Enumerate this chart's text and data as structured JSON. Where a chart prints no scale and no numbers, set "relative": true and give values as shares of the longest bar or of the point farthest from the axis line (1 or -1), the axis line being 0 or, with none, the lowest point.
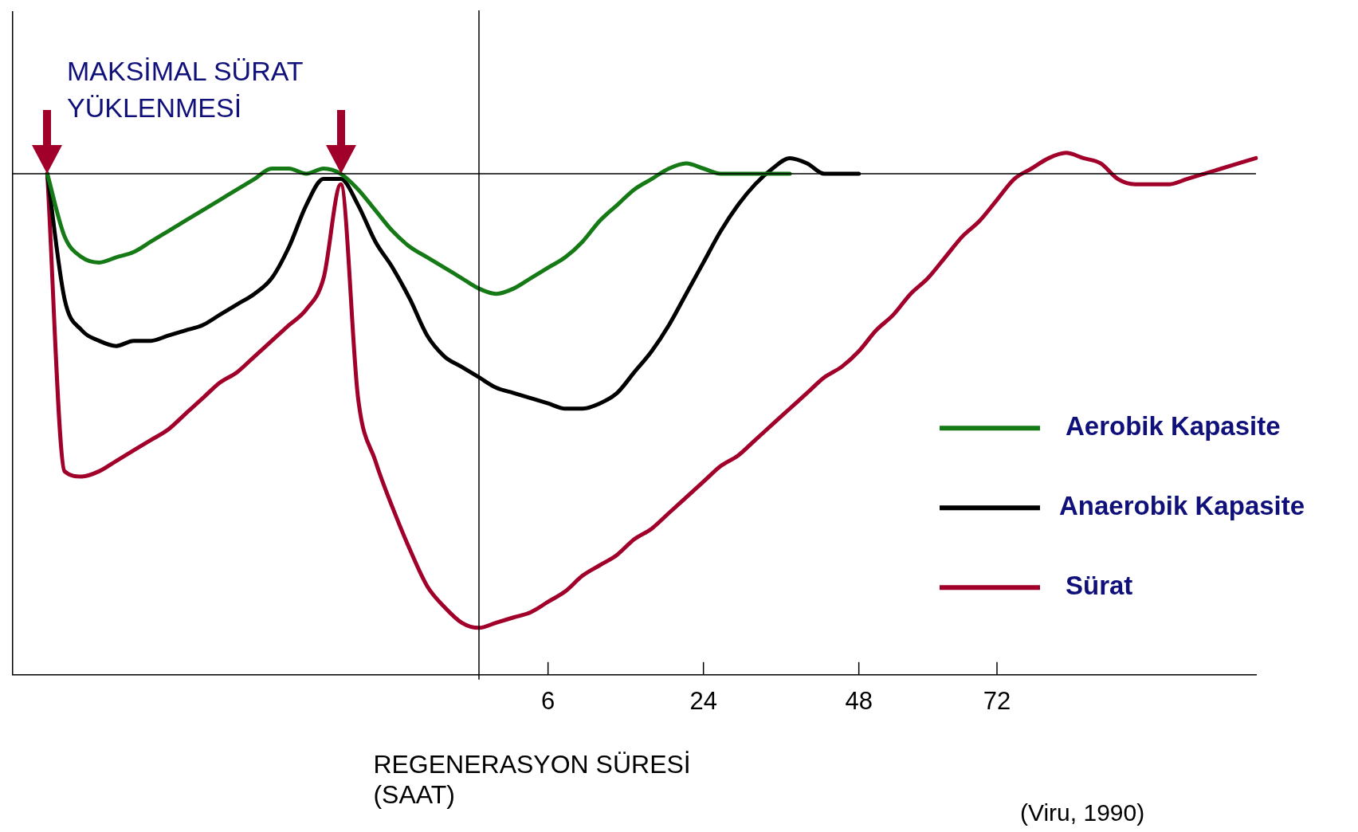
{
  "chart_data": {
    "type": "line",
    "relative": true,
    "xlabel": "REGENERASYON SÜRESİ\n(SAAT)",
    "annotations": [
      "MAKSİMAL SÜRAT\nYÜKLENMESİ",
      "(Viru, 1990)"
    ],
    "categories": [
      null,
      null,
      null,
      null,
      null,
      null,
      null,
      null,
      null,
      null,
      null,
      null,
      null,
      null,
      null,
      null,
      null,
      null,
      null,
      null,
      null,
      null,
      null,
      null,
      null,
      null,
      null,
      null,
      null,
      null,
      null,
      "6",
      null,
      null,
      null,
      null,
      null,
      null,
      null,
      null,
      "24",
      null,
      null,
      null,
      null,
      null,
      null,
      null,
      null,
      "48",
      null,
      null,
      null,
      null,
      null,
      null,
      null,
      "72",
      null,
      null,
      null,
      null,
      null,
      null,
      null,
      null,
      null,
      null,
      null,
      null,
      null,
      null,
      null
    ],
    "series": [
      {
        "name": "Aerobik Kapasite",
        "color": "#157a15",
        "values": [
          null,
          null,
          0.96,
          0.84,
          0.8,
          0.79,
          0.8,
          0.81,
          0.83,
          0.85,
          0.87,
          0.89,
          0.91,
          0.93,
          0.95,
          0.97,
          0.97,
          0.96,
          0.97,
          0.96,
          0.93,
          0.89,
          0.85,
          0.82,
          0.8,
          0.78,
          0.76,
          0.74,
          0.73,
          0.74,
          0.76,
          0.78,
          0.8,
          0.83,
          0.87,
          0.9,
          0.93,
          0.95,
          0.97,
          0.98,
          0.97,
          0.96,
          0.96,
          0.96,
          0.96,
          0.96,
          null,
          null,
          null,
          null,
          null,
          null,
          null,
          null,
          null,
          null,
          null,
          null,
          null,
          null,
          null,
          null,
          null,
          null,
          null,
          null,
          null,
          null,
          null,
          null,
          null,
          null,
          null
        ]
      },
      {
        "name": "Anaerobik Kapasite",
        "color": "#000000",
        "values": [
          null,
          null,
          0.96,
          0.72,
          0.66,
          0.64,
          0.63,
          0.64,
          0.64,
          0.65,
          0.66,
          0.67,
          0.69,
          0.71,
          0.73,
          0.76,
          0.82,
          0.9,
          0.95,
          0.95,
          0.9,
          0.83,
          0.78,
          0.72,
          0.65,
          0.61,
          0.59,
          0.57,
          0.55,
          0.54,
          0.53,
          0.52,
          0.51,
          0.51,
          0.52,
          0.54,
          0.58,
          0.62,
          0.67,
          0.73,
          0.79,
          0.85,
          0.9,
          0.94,
          0.97,
          0.99,
          0.98,
          0.96,
          0.96,
          0.96,
          null,
          null,
          null,
          null,
          null,
          null,
          null,
          null,
          null,
          null,
          null,
          null,
          null,
          null,
          null,
          null,
          null,
          null,
          null,
          null,
          null,
          null,
          null
        ]
      },
      {
        "name": "Sürat",
        "color": "#a0002a",
        "values": [
          null,
          null,
          0.96,
          0.39,
          0.38,
          0.39,
          0.41,
          0.43,
          0.45,
          0.47,
          0.5,
          0.53,
          0.56,
          0.58,
          0.61,
          0.64,
          0.67,
          0.7,
          0.76,
          0.94,
          0.53,
          0.41,
          0.32,
          0.24,
          0.17,
          0.13,
          0.1,
          0.09,
          0.1,
          0.11,
          0.12,
          0.14,
          0.16,
          0.19,
          0.21,
          0.23,
          0.26,
          0.28,
          0.31,
          0.34,
          0.37,
          0.4,
          0.42,
          0.45,
          0.48,
          0.51,
          0.54,
          0.57,
          0.59,
          0.62,
          0.66,
          0.69,
          0.73,
          0.76,
          0.8,
          0.84,
          0.87,
          0.91,
          0.95,
          0.97,
          0.99,
          1.0,
          0.99,
          0.98,
          0.95,
          0.94,
          0.94,
          0.94,
          0.95,
          0.96,
          0.97,
          0.98,
          0.99
        ]
      }
    ],
    "ref_lines": [
      {
        "axis": "y",
        "value": 0.96
      }
    ],
    "legend": "right"
  }
}
